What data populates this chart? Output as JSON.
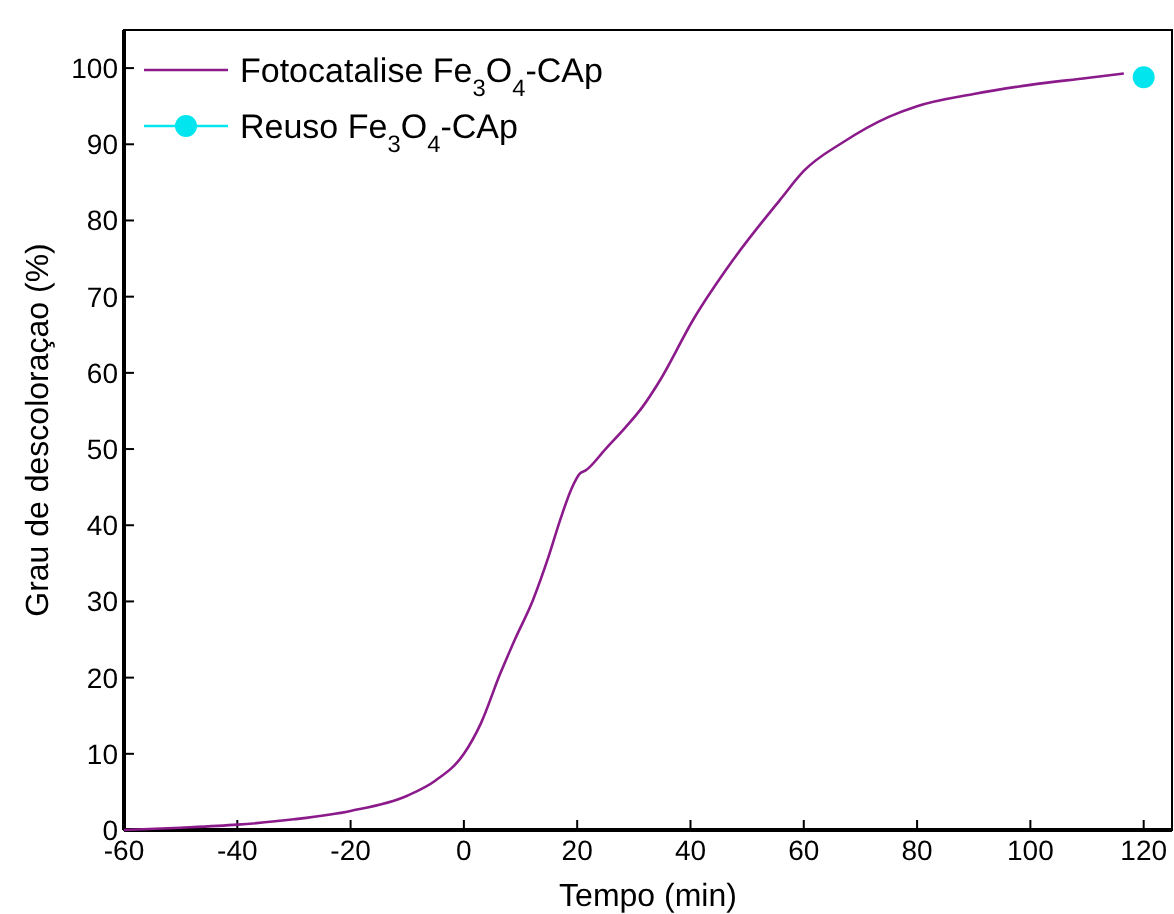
{
  "chart_data": {
    "type": "line",
    "xlabel": "Tempo (min)",
    "ylabel": "Grau de descoloraçao (%)",
    "xlim": [
      -60,
      125
    ],
    "ylim": [
      0,
      105
    ],
    "xticks": [
      -60,
      -40,
      -20,
      0,
      20,
      40,
      60,
      80,
      100,
      120
    ],
    "yticks": [
      0,
      10,
      20,
      30,
      40,
      50,
      60,
      70,
      80,
      90,
      100
    ],
    "grid": false,
    "legend": "top left",
    "series": [
      {
        "name": "Fotocatalise Fe$_{3}$O$_{4}$-CAp",
        "color": "#8b1a8b",
        "marker": "none",
        "x": [
          -60,
          -50,
          -40,
          -30,
          -20,
          -10,
          -5,
          0,
          3,
          6.4,
          9,
          12.2,
          15,
          17,
          19,
          20.5,
          21.5,
          25,
          28.6,
          31.5,
          34.6,
          40.5,
          47.5,
          55.8,
          60,
          67,
          75,
          80,
          90,
          100,
          110,
          116.5
        ],
        "values": [
          0,
          0.3,
          0.7,
          1.4,
          2.5,
          4.5,
          6.5,
          10,
          14,
          20.5,
          25,
          30.2,
          36,
          40.7,
          44.8,
          46.8,
          47.2,
          50,
          52.9,
          55.5,
          59,
          67,
          74.8,
          82.7,
          86.5,
          90.3,
          93.6,
          95,
          96.6,
          97.8,
          98.7,
          99.3
        ]
      },
      {
        "name": "Reuso Fe$_{3}$O$_{4}$-CAp",
        "color": "#00e5ee",
        "marker": "circle",
        "x": [
          120
        ],
        "values": [
          98.8
        ]
      }
    ]
  }
}
